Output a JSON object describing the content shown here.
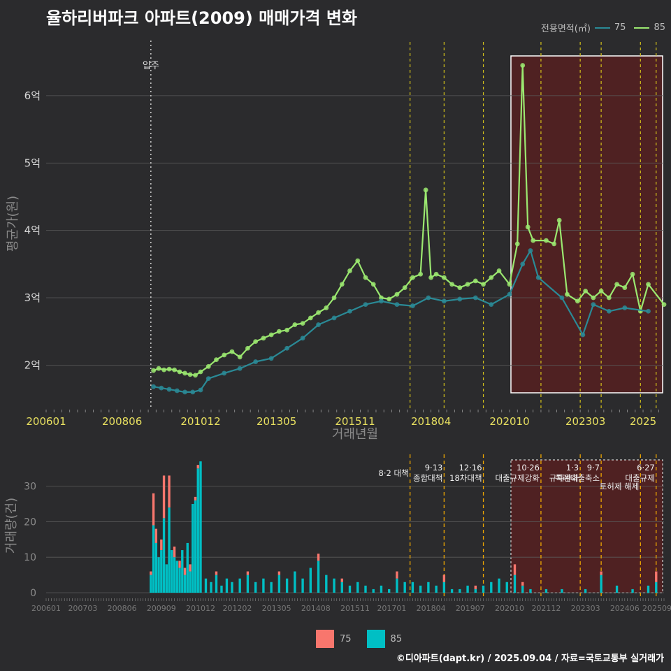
{
  "title": "율하리버파크 아파트(2009) 매매가격 변화",
  "footer": "©디아파트(dapt.kr) / 2025.09.04 / 자료=국토교통부 실거래가",
  "legend_top": {
    "label": "전용면적(㎡)",
    "items": [
      {
        "name": "75",
        "color": "#2a8a96"
      },
      {
        "name": "85",
        "color": "#9be870"
      }
    ]
  },
  "legend_bottom": {
    "items": [
      {
        "name": "75",
        "color": "#f8766d"
      },
      {
        "name": "85",
        "color": "#00bfc4"
      }
    ]
  },
  "colors": {
    "line75": "#2a8a96",
    "line85": "#9be870",
    "bar75": "#f8766d",
    "bar85": "#00bfc4",
    "vline": "#d4c21a",
    "highlight": "#5c1f1f",
    "background": "#2b2b2d",
    "grid": "#5a5a5a"
  },
  "chart_data": [
    {
      "type": "line",
      "title": "율하리버파크 아파트(2009) 매매가격 변화",
      "xlabel": "거래년월",
      "ylabel": "평균가(원)",
      "x_ticks": [
        "200601",
        "200806",
        "201012",
        "201305",
        "201511",
        "201804",
        "202010",
        "202303",
        "2025"
      ],
      "y_ticks": [
        {
          "v": 2,
          "label": "2억"
        },
        {
          "v": 3,
          "label": "3억"
        },
        {
          "v": 4,
          "label": "4억"
        },
        {
          "v": 5,
          "label": "5억"
        },
        {
          "v": 6,
          "label": "6억"
        }
      ],
      "ylim": [
        1.35,
        6.85
      ],
      "xlim": [
        "2006-01",
        "2025-09"
      ],
      "move_in": {
        "date": "2009-05",
        "label": "입주"
      },
      "policy_lines": [
        "2017-08",
        "2018-09",
        "2019-12",
        "2021-10",
        "2023-01",
        "2023-09",
        "2024-12",
        "2025-06"
      ],
      "highlight": {
        "from": "2020-10",
        "to": "2025-09"
      },
      "series": [
        {
          "name": "85",
          "points": [
            [
              "2009-06",
              1.92
            ],
            [
              "2009-08",
              1.95
            ],
            [
              "2009-10",
              1.93
            ],
            [
              "2009-12",
              1.94
            ],
            [
              "2010-02",
              1.93
            ],
            [
              "2010-04",
              1.9
            ],
            [
              "2010-06",
              1.88
            ],
            [
              "2010-08",
              1.86
            ],
            [
              "2010-10",
              1.85
            ],
            [
              "2010-12",
              1.9
            ],
            [
              "2011-03",
              1.98
            ],
            [
              "2011-06",
              2.08
            ],
            [
              "2011-09",
              2.15
            ],
            [
              "2011-12",
              2.2
            ],
            [
              "2012-03",
              2.12
            ],
            [
              "2012-06",
              2.25
            ],
            [
              "2012-09",
              2.35
            ],
            [
              "2012-12",
              2.4
            ],
            [
              "2013-03",
              2.45
            ],
            [
              "2013-06",
              2.5
            ],
            [
              "2013-09",
              2.52
            ],
            [
              "2013-12",
              2.6
            ],
            [
              "2014-03",
              2.62
            ],
            [
              "2014-06",
              2.7
            ],
            [
              "2014-09",
              2.78
            ],
            [
              "2014-12",
              2.85
            ],
            [
              "2015-03",
              3.0
            ],
            [
              "2015-06",
              3.2
            ],
            [
              "2015-09",
              3.4
            ],
            [
              "2015-12",
              3.55
            ],
            [
              "2016-03",
              3.3
            ],
            [
              "2016-06",
              3.2
            ],
            [
              "2016-09",
              3.0
            ],
            [
              "2016-12",
              2.98
            ],
            [
              "2017-03",
              3.05
            ],
            [
              "2017-06",
              3.15
            ],
            [
              "2017-09",
              3.3
            ],
            [
              "2017-12",
              3.35
            ],
            [
              "2018-02",
              4.6
            ],
            [
              "2018-04",
              3.3
            ],
            [
              "2018-06",
              3.35
            ],
            [
              "2018-09",
              3.3
            ],
            [
              "2018-12",
              3.2
            ],
            [
              "2019-03",
              3.15
            ],
            [
              "2019-06",
              3.2
            ],
            [
              "2019-09",
              3.25
            ],
            [
              "2019-12",
              3.2
            ],
            [
              "2020-03",
              3.3
            ],
            [
              "2020-06",
              3.4
            ],
            [
              "2020-10",
              3.2
            ],
            [
              "2021-01",
              3.8
            ],
            [
              "2021-03",
              6.45
            ],
            [
              "2021-05",
              4.05
            ],
            [
              "2021-07",
              3.85
            ],
            [
              "2021-12",
              3.85
            ],
            [
              "2022-03",
              3.8
            ],
            [
              "2022-05",
              4.15
            ],
            [
              "2022-08",
              3.05
            ],
            [
              "2022-12",
              2.95
            ],
            [
              "2023-03",
              3.1
            ],
            [
              "2023-06",
              3.0
            ],
            [
              "2023-09",
              3.1
            ],
            [
              "2023-12",
              3.0
            ],
            [
              "2024-03",
              3.2
            ],
            [
              "2024-06",
              3.15
            ],
            [
              "2024-09",
              3.35
            ],
            [
              "2024-12",
              2.8
            ],
            [
              "2025-03",
              3.2
            ],
            [
              "2025-09",
              2.9
            ]
          ]
        },
        {
          "name": "75",
          "points": [
            [
              "2009-06",
              1.68
            ],
            [
              "2009-09",
              1.66
            ],
            [
              "2009-12",
              1.64
            ],
            [
              "2010-03",
              1.62
            ],
            [
              "2010-06",
              1.6
            ],
            [
              "2010-09",
              1.6
            ],
            [
              "2010-12",
              1.63
            ],
            [
              "2011-03",
              1.8
            ],
            [
              "2011-09",
              1.88
            ],
            [
              "2012-03",
              1.95
            ],
            [
              "2012-09",
              2.05
            ],
            [
              "2013-03",
              2.1
            ],
            [
              "2013-09",
              2.25
            ],
            [
              "2014-03",
              2.4
            ],
            [
              "2014-09",
              2.6
            ],
            [
              "2015-03",
              2.7
            ],
            [
              "2015-09",
              2.8
            ],
            [
              "2016-03",
              2.9
            ],
            [
              "2016-09",
              2.95
            ],
            [
              "2017-03",
              2.9
            ],
            [
              "2017-09",
              2.88
            ],
            [
              "2018-03",
              3.0
            ],
            [
              "2018-09",
              2.95
            ],
            [
              "2019-03",
              2.98
            ],
            [
              "2019-09",
              3.0
            ],
            [
              "2020-03",
              2.9
            ],
            [
              "2020-10",
              3.05
            ],
            [
              "2021-03",
              3.5
            ],
            [
              "2021-06",
              3.7
            ],
            [
              "2021-09",
              3.3
            ],
            [
              "2022-06",
              3.0
            ],
            [
              "2023-02",
              2.45
            ],
            [
              "2023-06",
              2.9
            ],
            [
              "2023-12",
              2.8
            ],
            [
              "2024-06",
              2.85
            ],
            [
              "2025-03",
              2.8
            ]
          ]
        }
      ]
    },
    {
      "type": "bar",
      "stacked": true,
      "ylabel": "거래량(건)",
      "x_ticks": [
        "200601",
        "200703",
        "200806",
        "200909",
        "201012",
        "201202",
        "201305",
        "201408",
        "201511",
        "201701",
        "201804",
        "201907",
        "202010",
        "202112",
        "202303",
        "202406",
        "202509"
      ],
      "y_ticks": [
        0,
        10,
        20,
        30
      ],
      "ylim": [
        0,
        38
      ],
      "annotations": [
        {
          "date": "2017-08",
          "lines": [
            "8·2 대책"
          ]
        },
        {
          "date": "2018-09",
          "lines": [
            "9·13",
            "종합대책"
          ]
        },
        {
          "date": "2019-12",
          "lines": [
            "12·16",
            "18차대책"
          ]
        },
        {
          "date": "2021-10",
          "lines": [
            "10·26",
            "대출규제강화"
          ]
        },
        {
          "date": "2023-01",
          "lines": [
            "1·3",
            "규제완화"
          ]
        },
        {
          "date": "2023-09",
          "lines": [
            "9·7",
            "특례대출축소"
          ]
        },
        {
          "date": "2024-12",
          "lines": [
            "토허제 해제"
          ]
        },
        {
          "date": "2025-06",
          "lines": [
            "6·27",
            "대출규제"
          ]
        }
      ],
      "series": [
        {
          "name": "85",
          "values": [
            [
              "2009-05",
              5
            ],
            [
              "2009-06",
              19
            ],
            [
              "2009-07",
              14
            ],
            [
              "2009-08",
              10
            ],
            [
              "2009-09",
              12
            ],
            [
              "2009-10",
              21
            ],
            [
              "2009-11",
              8
            ],
            [
              "2009-12",
              24
            ],
            [
              "2010-01",
              12
            ],
            [
              "2010-02",
              10
            ],
            [
              "2010-03",
              9
            ],
            [
              "2010-04",
              7
            ],
            [
              "2010-05",
              12
            ],
            [
              "2010-06",
              5
            ],
            [
              "2010-07",
              14
            ],
            [
              "2010-08",
              6
            ],
            [
              "2010-09",
              25
            ],
            [
              "2010-10",
              26
            ],
            [
              "2010-11",
              35
            ],
            [
              "2010-12",
              37
            ],
            [
              "2011-02",
              4
            ],
            [
              "2011-04",
              3
            ],
            [
              "2011-06",
              5
            ],
            [
              "2011-08",
              2
            ],
            [
              "2011-10",
              4
            ],
            [
              "2011-12",
              3
            ],
            [
              "2012-03",
              4
            ],
            [
              "2012-06",
              5
            ],
            [
              "2012-09",
              3
            ],
            [
              "2012-12",
              4
            ],
            [
              "2013-03",
              3
            ],
            [
              "2013-06",
              5
            ],
            [
              "2013-09",
              4
            ],
            [
              "2013-12",
              6
            ],
            [
              "2014-03",
              4
            ],
            [
              "2014-06",
              7
            ],
            [
              "2014-09",
              9
            ],
            [
              "2014-12",
              5
            ],
            [
              "2015-03",
              4
            ],
            [
              "2015-06",
              3
            ],
            [
              "2015-09",
              2
            ],
            [
              "2015-12",
              3
            ],
            [
              "2016-03",
              2
            ],
            [
              "2016-06",
              1
            ],
            [
              "2016-09",
              2
            ],
            [
              "2016-12",
              1
            ],
            [
              "2017-03",
              4
            ],
            [
              "2017-06",
              3
            ],
            [
              "2017-09",
              3
            ],
            [
              "2017-12",
              2
            ],
            [
              "2018-03",
              3
            ],
            [
              "2018-06",
              2
            ],
            [
              "2018-09",
              3
            ],
            [
              "2018-12",
              1
            ],
            [
              "2019-03",
              1
            ],
            [
              "2019-06",
              2
            ],
            [
              "2019-09",
              1
            ],
            [
              "2019-12",
              2
            ],
            [
              "2020-03",
              3
            ],
            [
              "2020-06",
              4
            ],
            [
              "2020-09",
              3
            ],
            [
              "2020-12",
              5
            ],
            [
              "2021-03",
              2
            ],
            [
              "2021-06",
              1
            ],
            [
              "2021-12",
              1
            ],
            [
              "2022-06",
              1
            ],
            [
              "2023-03",
              1
            ],
            [
              "2023-09",
              5
            ],
            [
              "2024-03",
              2
            ],
            [
              "2024-09",
              1
            ],
            [
              "2025-03",
              2
            ],
            [
              "2025-06",
              3
            ]
          ]
        },
        {
          "name": "75",
          "values": [
            [
              "2009-05",
              1
            ],
            [
              "2009-06",
              9
            ],
            [
              "2009-07",
              4
            ],
            [
              "2009-09",
              3
            ],
            [
              "2009-10",
              12
            ],
            [
              "2009-12",
              9
            ],
            [
              "2010-02",
              3
            ],
            [
              "2010-04",
              2
            ],
            [
              "2010-06",
              2
            ],
            [
              "2010-08",
              2
            ],
            [
              "2010-10",
              1
            ],
            [
              "2010-11",
              1
            ],
            [
              "2011-06",
              1
            ],
            [
              "2012-06",
              1
            ],
            [
              "2013-06",
              1
            ],
            [
              "2014-09",
              2
            ],
            [
              "2015-06",
              1
            ],
            [
              "2017-03",
              2
            ],
            [
              "2018-09",
              2
            ],
            [
              "2019-09",
              1
            ],
            [
              "2020-12",
              3
            ],
            [
              "2021-03",
              1
            ],
            [
              "2023-09",
              1
            ],
            [
              "2025-06",
              3
            ]
          ]
        }
      ]
    }
  ]
}
